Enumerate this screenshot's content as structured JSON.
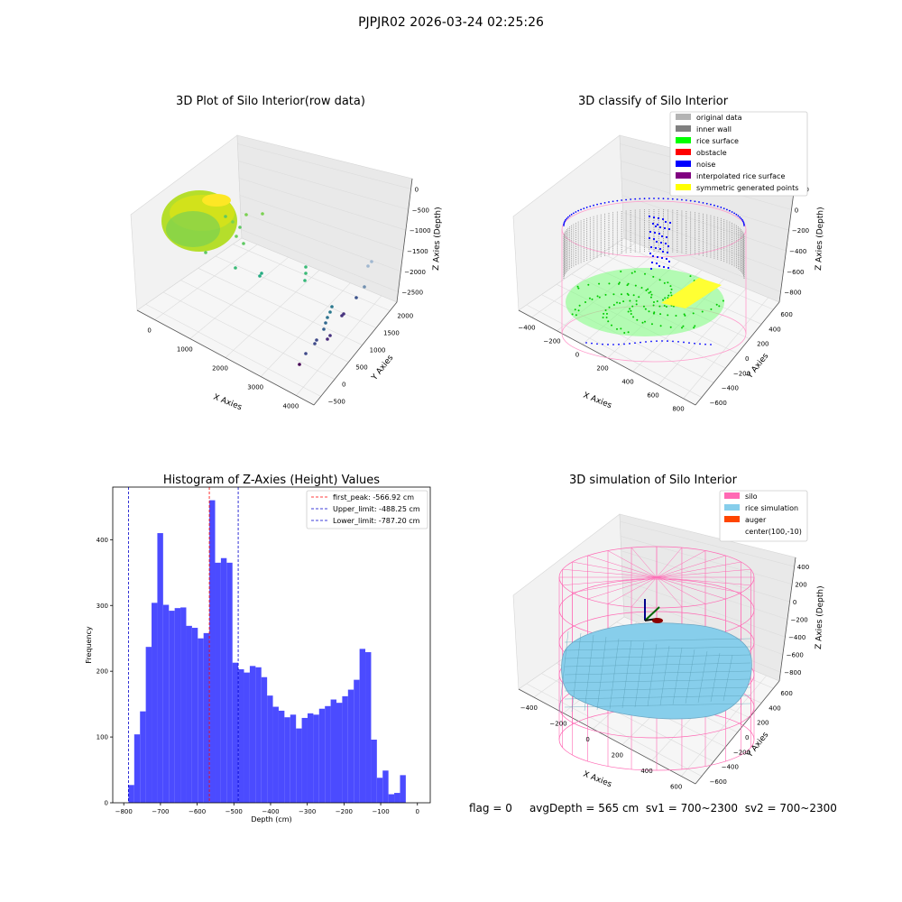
{
  "figure_title": "PJPJR02 2026-03-24 02:25:26",
  "status_line": {
    "flag": "flag = 0",
    "avg_depth": "avgDepth = 565 cm",
    "sv1": "sv1 = 700~2300",
    "sv2": "sv2 = 700~2300"
  },
  "colors": {
    "hist_bar": "#4b4bff",
    "first_peak_line": "#ff0000",
    "limit_line": "#0000cc",
    "original_data": "#b3b3b3",
    "inner_wall": "#808080",
    "rice_surface": "#00ff00",
    "obstacle": "#ff0000",
    "noise": "#0000ff",
    "interpolated_rice_surface": "#800080",
    "symmetric_generated_points": "#ffff00",
    "silo": "#ff69b4",
    "rice_simulation": "#87ceeb",
    "auger": "#ff4500"
  },
  "chart_data": [
    {
      "type": "scatter",
      "subtype": "3d",
      "title": "3D Plot of Silo Interior(row data)",
      "xlabel": "X Axies",
      "ylabel": "Y Axies",
      "zlabel": "Z Axies (Depth)",
      "x_ticks": [
        "0",
        "1000",
        "2000",
        "3000",
        "4000"
      ],
      "y_ticks": [
        "−500",
        "0",
        "500",
        "1000",
        "1500",
        "2000"
      ],
      "z_ticks": [
        "0",
        "−500",
        "−1000",
        "−1500",
        "−2000",
        "−2500"
      ],
      "colormap": "viridis (by depth)",
      "grid": true
    },
    {
      "type": "scatter",
      "subtype": "3d",
      "title": "3D classify of Silo Interior",
      "xlabel": "X Axies",
      "ylabel": "Y Axies",
      "zlabel": "Z Axies (Depth)",
      "x_ticks": [
        "−400",
        "−200",
        "0",
        "200",
        "400",
        "600",
        "800"
      ],
      "y_ticks": [
        "−600",
        "−400",
        "−200",
        "0",
        "200",
        "400",
        "600"
      ],
      "z_ticks": [
        "200",
        "0",
        "−200",
        "−400",
        "−600",
        "−800"
      ],
      "legend_position": "top-right",
      "legend": [
        {
          "label": "original data",
          "color": "#b3b3b3"
        },
        {
          "label": "inner wall",
          "color": "#808080"
        },
        {
          "label": "rice surface",
          "color": "#00ff00"
        },
        {
          "label": "obstacle",
          "color": "#ff0000"
        },
        {
          "label": "noise",
          "color": "#0000ff"
        },
        {
          "label": "interpolated rice surface",
          "color": "#800080"
        },
        {
          "label": "symmetric generated points",
          "color": "#ffff00"
        }
      ],
      "grid": true
    },
    {
      "type": "bar",
      "subtype": "histogram",
      "title": "Histogram of Z-Axies (Height) Values",
      "xlabel": "Depth (cm)",
      "ylabel": "Frequency",
      "xlim": [
        -830,
        35
      ],
      "ylim": [
        0,
        480
      ],
      "x_ticks": [
        -800,
        -700,
        -600,
        -500,
        -400,
        -300,
        -200,
        -100,
        0
      ],
      "y_ticks": [
        0,
        100,
        200,
        300,
        400
      ],
      "bin_start": -787.2,
      "bin_width": 15.74,
      "values": [
        27,
        104,
        139,
        237,
        304,
        410,
        301,
        292,
        296,
        297,
        269,
        266,
        250,
        258,
        460,
        365,
        372,
        365,
        213,
        203,
        198,
        208,
        206,
        191,
        163,
        146,
        140,
        130,
        134,
        113,
        129,
        136,
        134,
        143,
        147,
        157,
        152,
        162,
        172,
        187,
        234,
        229,
        96,
        38,
        49,
        13,
        15,
        42
      ],
      "vlines": [
        {
          "label": "first_peak: -566.92 cm",
          "x": -566.92,
          "color": "#ff0000"
        },
        {
          "label": "Upper_limit: -488.25 cm",
          "x": -488.25,
          "color": "#0000cc"
        },
        {
          "label": "Lower_limit: -787.20 cm",
          "x": -787.2,
          "color": "#0000cc"
        }
      ],
      "legend_position": "top-right",
      "grid": false
    },
    {
      "type": "scatter",
      "subtype": "3d-surface",
      "title": "3D simulation of Silo Interior",
      "xlabel": "X Axies",
      "ylabel": "Y Axies",
      "zlabel": "Z Axies (Depth)",
      "x_ticks": [
        "−400",
        "−200",
        "0",
        "200",
        "400",
        "600"
      ],
      "y_ticks": [
        "−600",
        "−400",
        "−200",
        "0",
        "200",
        "400",
        "600"
      ],
      "z_ticks": [
        "400",
        "200",
        "0",
        "−200",
        "−400",
        "−600",
        "−800"
      ],
      "legend_position": "top-right",
      "legend": [
        {
          "label": "silo",
          "color": "#ff69b4"
        },
        {
          "label": "rice simulation",
          "color": "#87ceeb"
        },
        {
          "label": "auger",
          "color": "#ff4500"
        },
        {
          "label": "center(100,-10)",
          "color": ""
        }
      ],
      "grid": true
    }
  ]
}
